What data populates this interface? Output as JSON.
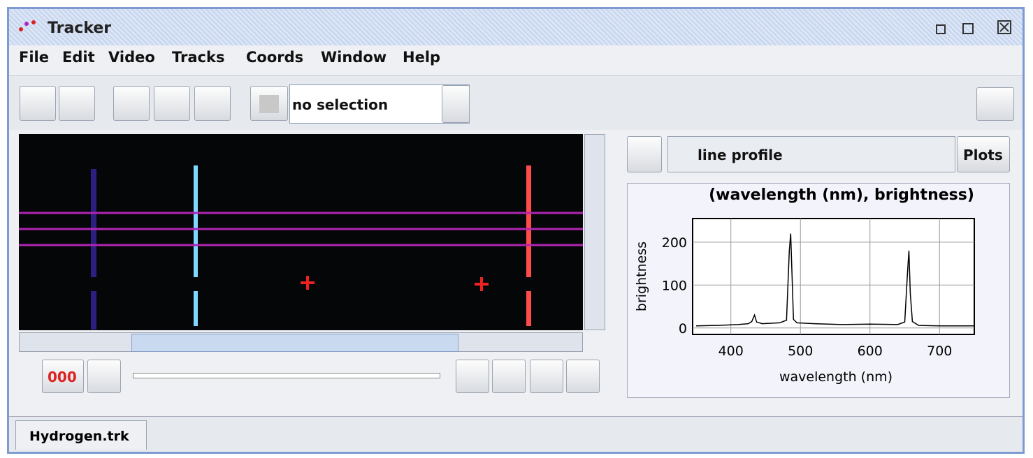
{
  "window": {
    "title": "Tracker"
  },
  "menu": [
    "File",
    "Edit",
    "Video",
    "Tracks",
    "Coords",
    "Window",
    "Help"
  ],
  "toolbar": {
    "selection": "no selection"
  },
  "video": {
    "frame": "000"
  },
  "plot_panel": {
    "track": "line profile",
    "button": "Plots"
  },
  "chart_data": {
    "type": "line",
    "title": "(wavelength (nm), brightness)",
    "x_label": "wavelength (nm)",
    "y_label": "brightness",
    "x": [
      350,
      380,
      410,
      425,
      430,
      434,
      437,
      445,
      470,
      480,
      484,
      486,
      488,
      490,
      495,
      520,
      560,
      600,
      640,
      650,
      654,
      656,
      658,
      661,
      670,
      700,
      750
    ],
    "values": [
      5,
      6,
      8,
      10,
      15,
      30,
      14,
      10,
      12,
      18,
      180,
      220,
      120,
      20,
      12,
      10,
      8,
      9,
      8,
      14,
      130,
      180,
      80,
      15,
      6,
      5,
      5
    ],
    "color": "#000000",
    "xlim": [
      345,
      750
    ],
    "ylim": [
      -15,
      255
    ],
    "xticks": [
      400,
      500,
      600,
      700
    ],
    "yticks": [
      0,
      100,
      200
    ],
    "grid": true
  },
  "tabs": [
    "Hydrogen.trk"
  ]
}
